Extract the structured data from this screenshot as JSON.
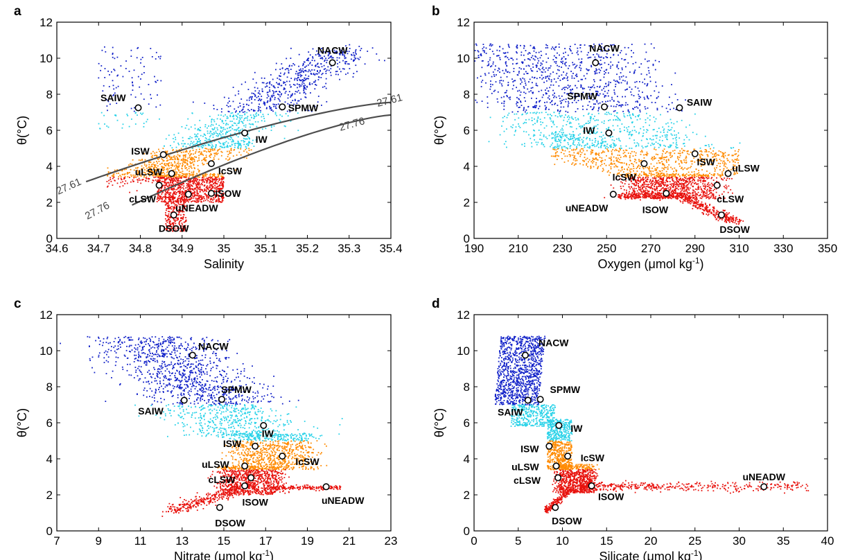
{
  "colors": {
    "band_red": "#e8130e",
    "band_orange": "#ff8a00",
    "band_cyan": "#29d2e8",
    "band_blue": "#1020c8",
    "density_line": "#4d4d4d"
  },
  "chart_data": [
    {
      "type": "scatter",
      "panel_label": "a",
      "xlabel": "Salinity",
      "ylabel": "θ(°C)",
      "xlim": [
        34.6,
        35.4
      ],
      "ylim": [
        0,
        12
      ],
      "x_ticks": [
        "34.6",
        "34.7",
        "34.8",
        "34.9",
        "35",
        "35.1",
        "35.2",
        "35.3",
        "35.4"
      ],
      "y_ticks": [
        "0",
        "2",
        "4",
        "6",
        "8",
        "10",
        "12"
      ],
      "water_masses": [
        {
          "name": "NACW",
          "x": 35.26,
          "y": 9.75,
          "label_dx": 0.0,
          "label_dy": 0.7
        },
        {
          "name": "SAIW",
          "x": 34.795,
          "y": 7.25,
          "label_dx": -0.06,
          "label_dy": 0.55
        },
        {
          "name": "SPMW",
          "x": 35.14,
          "y": 7.3,
          "label_dx": 0.05,
          "label_dy": -0.05
        },
        {
          "name": "IW",
          "x": 35.05,
          "y": 5.85,
          "label_dx": 0.04,
          "label_dy": -0.35
        },
        {
          "name": "ISW",
          "x": 34.855,
          "y": 4.65,
          "label_dx": -0.055,
          "label_dy": 0.2
        },
        {
          "name": "uLSW",
          "x": 34.875,
          "y": 3.6,
          "label_dx": -0.055,
          "label_dy": 0.1
        },
        {
          "name": "IcSW",
          "x": 34.97,
          "y": 4.15,
          "label_dx": 0.045,
          "label_dy": -0.4
        },
        {
          "name": "cLSW",
          "x": 34.845,
          "y": 2.95,
          "label_dx": -0.04,
          "label_dy": -0.75
        },
        {
          "name": "ISOW",
          "x": 34.97,
          "y": 2.5,
          "label_dx": 0.04,
          "label_dy": 0.0
        },
        {
          "name": "uNEADW",
          "x": 34.915,
          "y": 2.45,
          "label_dx": 0.02,
          "label_dy": -0.75
        },
        {
          "name": "DSOW",
          "x": 34.88,
          "y": 1.3,
          "label_dx": 0.0,
          "label_dy": -0.75
        }
      ],
      "isopycnals": [
        {
          "label": "27.61"
        },
        {
          "label": "27.76"
        }
      ]
    },
    {
      "type": "scatter",
      "panel_label": "b",
      "xlabel": "Oxygen (μmol kg",
      "xlabel_sup": "-1",
      "xlabel_tail": ")",
      "ylabel": "θ(°C)",
      "xlim": [
        190,
        350
      ],
      "ylim": [
        0,
        12
      ],
      "x_ticks": [
        "190",
        "210",
        "230",
        "250",
        "270",
        "290",
        "310",
        "330",
        "350"
      ],
      "y_ticks": [
        "0",
        "2",
        "4",
        "6",
        "8",
        "10",
        "12"
      ],
      "water_masses": [
        {
          "name": "NACW",
          "x": 245,
          "y": 9.75,
          "label_dx": 4,
          "label_dy": 0.8
        },
        {
          "name": "SPMW",
          "x": 249,
          "y": 7.3,
          "label_dx": -10,
          "label_dy": 0.6
        },
        {
          "name": "SAIW",
          "x": 283,
          "y": 7.25,
          "label_dx": 9,
          "label_dy": 0.3
        },
        {
          "name": "IW",
          "x": 251,
          "y": 5.85,
          "label_dx": -9,
          "label_dy": 0.15
        },
        {
          "name": "ISW",
          "x": 290,
          "y": 4.7,
          "label_dx": 5,
          "label_dy": -0.45
        },
        {
          "name": "uLSW",
          "x": 305,
          "y": 3.6,
          "label_dx": 8,
          "label_dy": 0.3
        },
        {
          "name": "IcSW",
          "x": 267,
          "y": 4.15,
          "label_dx": -9,
          "label_dy": -0.75
        },
        {
          "name": "cLSW",
          "x": 300,
          "y": 2.95,
          "label_dx": 6,
          "label_dy": -0.75
        },
        {
          "name": "uNEADW",
          "x": 253,
          "y": 2.45,
          "label_dx": -12,
          "label_dy": -0.75
        },
        {
          "name": "ISOW",
          "x": 277,
          "y": 2.5,
          "label_dx": -5,
          "label_dy": -0.9
        },
        {
          "name": "DSOW",
          "x": 302,
          "y": 1.3,
          "label_dx": 6,
          "label_dy": -0.8
        }
      ]
    },
    {
      "type": "scatter",
      "panel_label": "c",
      "xlabel": "Nitrate  (μmol kg",
      "xlabel_sup": "-1",
      "xlabel_tail": ")",
      "ylabel": "θ(°C)",
      "xlim": [
        7,
        23
      ],
      "ylim": [
        0,
        12
      ],
      "x_ticks": [
        "7",
        "9",
        "11",
        "13",
        "15",
        "17",
        "19",
        "21",
        "23"
      ],
      "y_ticks": [
        "0",
        "2",
        "4",
        "6",
        "8",
        "10",
        "12"
      ],
      "water_masses": [
        {
          "name": "NACW",
          "x": 13.5,
          "y": 9.75,
          "label_dx": 1.0,
          "label_dy": 0.5
        },
        {
          "name": "SPMW",
          "x": 14.9,
          "y": 7.3,
          "label_dx": 0.7,
          "label_dy": 0.55
        },
        {
          "name": "SAIW",
          "x": 13.1,
          "y": 7.25,
          "label_dx": -1.6,
          "label_dy": -0.6
        },
        {
          "name": "IW",
          "x": 16.9,
          "y": 5.85,
          "label_dx": 0.2,
          "label_dy": -0.45
        },
        {
          "name": "ISW",
          "x": 16.5,
          "y": 4.7,
          "label_dx": -1.1,
          "label_dy": 0.15
        },
        {
          "name": "IcSW",
          "x": 17.8,
          "y": 4.15,
          "label_dx": 1.2,
          "label_dy": -0.3
        },
        {
          "name": "uLSW",
          "x": 16.0,
          "y": 3.6,
          "label_dx": -1.4,
          "label_dy": 0.1
        },
        {
          "name": "cLSW",
          "x": 16.3,
          "y": 2.95,
          "label_dx": -1.4,
          "label_dy": -0.1
        },
        {
          "name": "ISOW",
          "x": 16.0,
          "y": 2.5,
          "label_dx": 0.5,
          "label_dy": -0.9
        },
        {
          "name": "uNEADW",
          "x": 19.9,
          "y": 2.45,
          "label_dx": 0.8,
          "label_dy": -0.75
        },
        {
          "name": "DSOW",
          "x": 14.8,
          "y": 1.3,
          "label_dx": 0.5,
          "label_dy": -0.85
        }
      ]
    },
    {
      "type": "scatter",
      "panel_label": "d",
      "xlabel": "Silicate  (μmol kg",
      "xlabel_sup": "-1",
      "xlabel_tail": ")",
      "ylabel": "θ(°C)",
      "xlim": [
        0,
        40
      ],
      "ylim": [
        0,
        12
      ],
      "x_ticks": [
        "0",
        "5",
        "10",
        "15",
        "20",
        "25",
        "30",
        "35",
        "40"
      ],
      "y_ticks": [
        "0",
        "2",
        "4",
        "6",
        "8",
        "10",
        "12"
      ],
      "water_masses": [
        {
          "name": "NACW",
          "x": 5.8,
          "y": 9.75,
          "label_dx": 3.2,
          "label_dy": 0.7
        },
        {
          "name": "SPMW",
          "x": 7.5,
          "y": 7.3,
          "label_dx": 2.8,
          "label_dy": 0.55
        },
        {
          "name": "SAIW",
          "x": 6.1,
          "y": 7.25,
          "label_dx": -2.0,
          "label_dy": -0.65
        },
        {
          "name": "IW",
          "x": 9.6,
          "y": 5.85,
          "label_dx": 2.0,
          "label_dy": -0.15
        },
        {
          "name": "ISW",
          "x": 8.5,
          "y": 4.7,
          "label_dx": -2.2,
          "label_dy": -0.15
        },
        {
          "name": "IcSW",
          "x": 10.6,
          "y": 4.15,
          "label_dx": 2.8,
          "label_dy": -0.1
        },
        {
          "name": "uLSW",
          "x": 9.3,
          "y": 3.6,
          "label_dx": -3.5,
          "label_dy": -0.05
        },
        {
          "name": "cLSW",
          "x": 9.5,
          "y": 2.95,
          "label_dx": -3.5,
          "label_dy": -0.15
        },
        {
          "name": "ISOW",
          "x": 13.3,
          "y": 2.5,
          "label_dx": 2.2,
          "label_dy": -0.6
        },
        {
          "name": "uNEADW",
          "x": 32.8,
          "y": 2.45,
          "label_dx": 0.0,
          "label_dy": 0.55
        },
        {
          "name": "DSOW",
          "x": 9.2,
          "y": 1.3,
          "label_dx": 1.3,
          "label_dy": -0.75
        }
      ]
    }
  ]
}
